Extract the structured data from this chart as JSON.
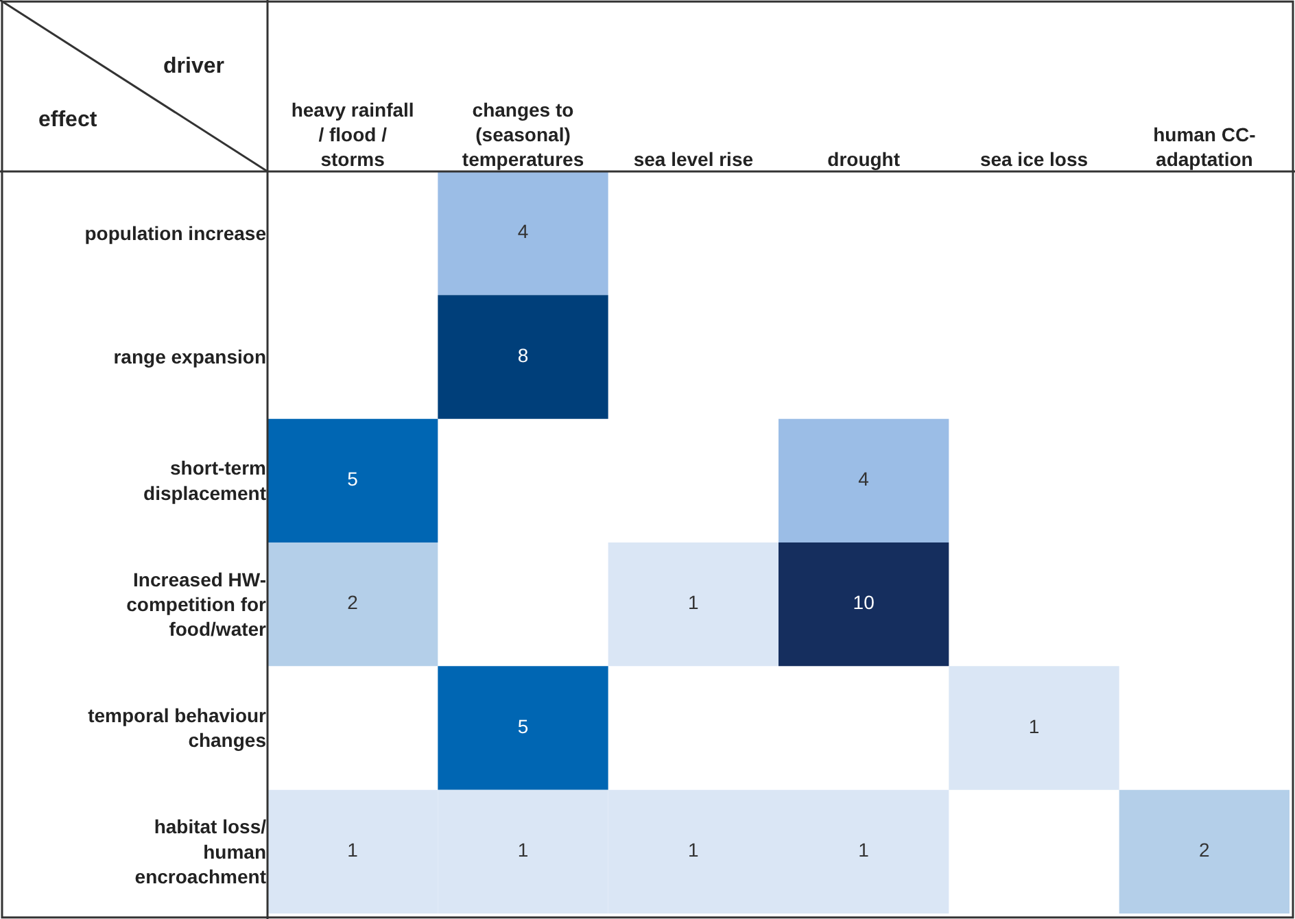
{
  "chart_data": {
    "type": "heatmap",
    "xlabel": "driver",
    "ylabel": "effect",
    "categories": [
      "heavy rainfall\n/ flood /\nstorms",
      "changes to\n(seasonal)\ntemperatures",
      "sea level rise",
      "drought",
      "sea ice loss",
      "human CC-\nadaptation"
    ],
    "y_categories": [
      "population increase",
      "range expansion",
      "short-term\ndisplacement",
      "Increased HW-\ncompetition for\nfood/water",
      "temporal behaviour\nchanges",
      "habitat loss/\nhuman\nencroachment"
    ],
    "cells": [
      [
        null,
        4,
        null,
        null,
        null,
        null
      ],
      [
        null,
        8,
        null,
        null,
        null,
        null
      ],
      [
        5,
        null,
        null,
        4,
        null,
        null
      ],
      [
        2,
        null,
        1,
        10,
        null,
        null
      ],
      [
        null,
        5,
        null,
        null,
        1,
        null
      ],
      [
        1,
        1,
        1,
        1,
        null,
        2
      ]
    ],
    "colors": [
      [
        null,
        "#9bbde6",
        null,
        null,
        null,
        null
      ],
      [
        null,
        "#003f7a",
        null,
        null,
        null,
        null
      ],
      [
        "#0066b3",
        null,
        null,
        "#9bbde6",
        null,
        null
      ],
      [
        "#b4cfe9",
        null,
        "#dae6f5",
        "#152e5e",
        null,
        null
      ],
      [
        null,
        "#0066b3",
        null,
        null,
        "#dae6f5",
        null
      ],
      [
        "#dae6f5",
        "#dae6f5",
        "#dae6f5",
        "#dae6f5",
        null,
        "#b4cfe9"
      ]
    ],
    "data_labels": true
  }
}
